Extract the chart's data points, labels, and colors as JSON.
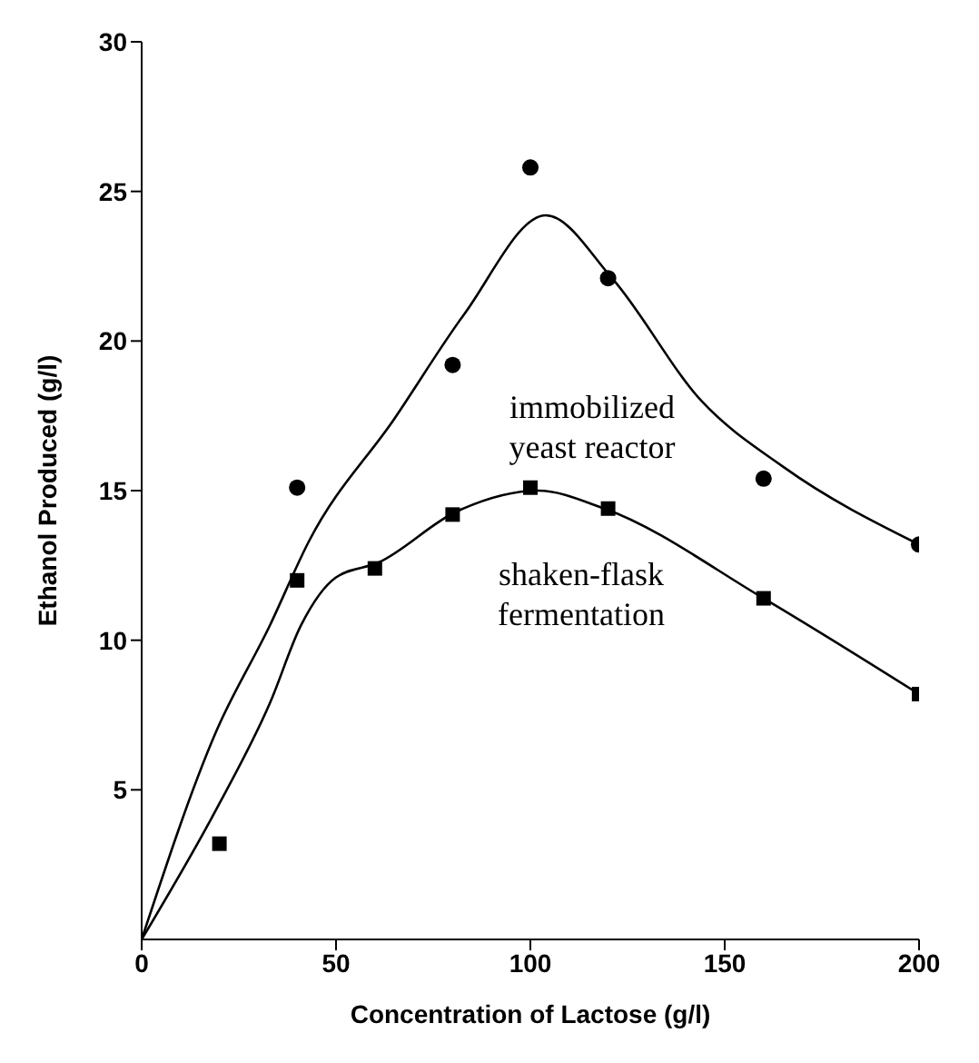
{
  "chart_data": {
    "type": "scatter",
    "xlabel": "Concentration of Lactose (g/l)",
    "ylabel": "Ethanol Produced (g/l)",
    "xlim": [
      0,
      200
    ],
    "xticks": [
      0,
      50,
      100,
      150,
      200
    ],
    "ylim": [
      0,
      30
    ],
    "yticks": [
      5,
      10,
      15,
      20,
      25,
      30
    ],
    "grid": false,
    "series": [
      {
        "marker": "circle",
        "color": "#000000",
        "x": [
          40,
          80,
          100,
          120,
          160,
          200
        ],
        "values": [
          15.1,
          19.2,
          25.8,
          22.1,
          15.4,
          13.2
        ]
      },
      {
        "marker": "square",
        "color": "#000000",
        "x": [
          20,
          40,
          60,
          80,
          100,
          120,
          160,
          200
        ],
        "values": [
          3.2,
          12.0,
          12.4,
          14.2,
          15.1,
          14.4,
          11.4,
          8.2
        ]
      },
      {
        "type": "line",
        "marker": "none",
        "line_style": "solid",
        "color": "#000000",
        "x": [
          0,
          19,
          33,
          43,
          65,
          83,
          104,
          121,
          144,
          165,
          200
        ],
        "values": [
          0,
          6.9,
          10.5,
          13.3,
          17.4,
          20.9,
          24.2,
          22.1,
          18.0,
          15.8,
          13.2
        ]
      },
      {
        "type": "line",
        "marker": "none",
        "line_style": "solid",
        "color": "#000000",
        "x": [
          0,
          19,
          33,
          41,
          50,
          61,
          81,
          102,
          119,
          160,
          200
        ],
        "values": [
          0,
          4.3,
          7.9,
          10.5,
          12.1,
          12.6,
          14.3,
          15.0,
          14.4,
          11.4,
          8.2
        ]
      }
    ],
    "annotations": [
      "immobilized yeast reactor",
      "shaken-flask fermentation"
    ]
  }
}
